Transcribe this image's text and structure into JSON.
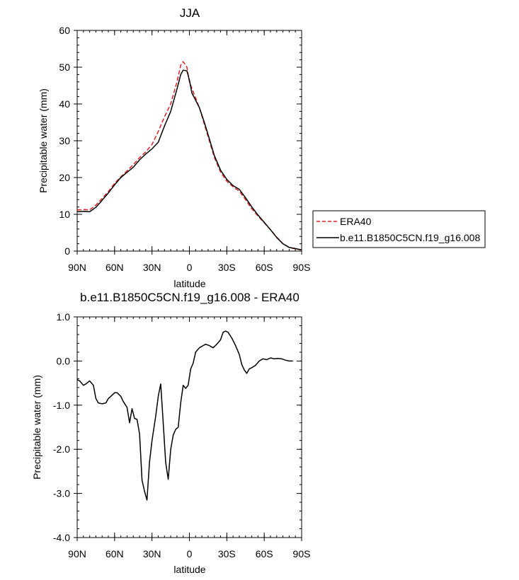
{
  "chart_data": [
    {
      "type": "line",
      "title": "JJA",
      "xlabel": "latitude",
      "ylabel": "Precipitable water (mm)",
      "xlim": [
        -90,
        90
      ],
      "ylim": [
        0,
        60
      ],
      "x_ticks": [
        {
          "value": -90,
          "label": "90N"
        },
        {
          "value": -60,
          "label": "60N"
        },
        {
          "value": -30,
          "label": "30N"
        },
        {
          "value": 0,
          "label": "0"
        },
        {
          "value": 30,
          "label": "30S"
        },
        {
          "value": 60,
          "label": "60S"
        },
        {
          "value": 90,
          "label": "90S"
        }
      ],
      "y_ticks": [
        {
          "value": 0,
          "label": "0"
        },
        {
          "value": 10,
          "label": "10"
        },
        {
          "value": 20,
          "label": "20"
        },
        {
          "value": 30,
          "label": "30"
        },
        {
          "value": 40,
          "label": "40"
        },
        {
          "value": 50,
          "label": "50"
        },
        {
          "value": 60,
          "label": "60"
        }
      ],
      "legend": {
        "position": "right"
      },
      "series": [
        {
          "name": "ERA40",
          "color": "#e02020",
          "dash": "dashed",
          "points": [
            [
              -90,
              11.2
            ],
            [
              -84,
              11.3
            ],
            [
              -80,
              11.2
            ],
            [
              -75,
              12.5
            ],
            [
              -70,
              14.3
            ],
            [
              -65,
              16.2
            ],
            [
              -60,
              18.4
            ],
            [
              -55,
              20.2
            ],
            [
              -50,
              21.8
            ],
            [
              -45,
              23.5
            ],
            [
              -40,
              25.4
            ],
            [
              -35,
              27.0
            ],
            [
              -30,
              29.0
            ],
            [
              -25,
              32.5
            ],
            [
              -20,
              36.5
            ],
            [
              -15,
              40.0
            ],
            [
              -10,
              46.0
            ],
            [
              -7,
              50.5
            ],
            [
              -5,
              51.5
            ],
            [
              -2,
              50.0
            ],
            [
              0,
              46.0
            ],
            [
              4,
              42.5
            ],
            [
              8,
              39.0
            ],
            [
              12,
              34.5
            ],
            [
              16,
              30.0
            ],
            [
              20,
              25.5
            ],
            [
              25,
              21.5
            ],
            [
              30,
              19.0
            ],
            [
              35,
              17.5
            ],
            [
              40,
              16.3
            ],
            [
              45,
              14.0
            ],
            [
              50,
              11.5
            ],
            [
              55,
              9.5
            ],
            [
              60,
              7.7
            ],
            [
              65,
              5.8
            ],
            [
              70,
              3.8
            ],
            [
              75,
              2.0
            ],
            [
              80,
              1.0
            ],
            [
              85,
              0.6
            ],
            [
              90,
              0.3
            ]
          ]
        },
        {
          "name": "b.e11.B1850C5CN.f19_g16.008",
          "color": "#000000",
          "dash": "solid",
          "points": [
            [
              -90,
              10.7
            ],
            [
              -84,
              10.8
            ],
            [
              -80,
              10.7
            ],
            [
              -75,
              11.9
            ],
            [
              -70,
              13.8
            ],
            [
              -65,
              15.8
            ],
            [
              -60,
              18.0
            ],
            [
              -55,
              20.0
            ],
            [
              -50,
              21.4
            ],
            [
              -45,
              22.8
            ],
            [
              -40,
              24.8
            ],
            [
              -35,
              26.4
            ],
            [
              -30,
              27.8
            ],
            [
              -25,
              29.6
            ],
            [
              -20,
              34.0
            ],
            [
              -15,
              38.0
            ],
            [
              -10,
              44.0
            ],
            [
              -7,
              48.0
            ],
            [
              -5,
              49.2
            ],
            [
              -2,
              49.0
            ],
            [
              0,
              46.5
            ],
            [
              2,
              43.0
            ],
            [
              5,
              41.0
            ],
            [
              8,
              39.0
            ],
            [
              12,
              35.0
            ],
            [
              16,
              30.5
            ],
            [
              20,
              26.0
            ],
            [
              25,
              22.0
            ],
            [
              30,
              19.5
            ],
            [
              35,
              17.8
            ],
            [
              40,
              16.8
            ],
            [
              45,
              14.5
            ],
            [
              50,
              12.0
            ],
            [
              55,
              9.8
            ],
            [
              60,
              7.8
            ],
            [
              65,
              5.8
            ],
            [
              70,
              3.7
            ],
            [
              75,
              2.0
            ],
            [
              80,
              1.0
            ],
            [
              85,
              0.7
            ],
            [
              90,
              0.3
            ]
          ]
        }
      ]
    },
    {
      "type": "line",
      "title": "b.e11.B1850C5CN.f19_g16.008 - ERA40",
      "xlabel": "latitude",
      "ylabel": "Precipitable water (mm)",
      "xlim": [
        -90,
        90
      ],
      "ylim": [
        -4,
        1
      ],
      "x_ticks": [
        {
          "value": -90,
          "label": "90N"
        },
        {
          "value": -60,
          "label": "60N"
        },
        {
          "value": -30,
          "label": "30N"
        },
        {
          "value": 0,
          "label": "0"
        },
        {
          "value": 30,
          "label": "30S"
        },
        {
          "value": 60,
          "label": "60S"
        },
        {
          "value": 90,
          "label": "90S"
        }
      ],
      "y_ticks": [
        {
          "value": 1,
          "label": "1.0"
        },
        {
          "value": 0,
          "label": "0.0"
        },
        {
          "value": -1,
          "label": "-1.0"
        },
        {
          "value": -2,
          "label": "-2.0"
        },
        {
          "value": -3,
          "label": "-3.0"
        },
        {
          "value": -4,
          "label": "-4.0"
        }
      ],
      "series": [
        {
          "color": "#000000",
          "dash": "solid",
          "points": [
            [
              -90,
              -0.42
            ],
            [
              -88,
              -0.45
            ],
            [
              -85,
              -0.55
            ],
            [
              -83,
              -0.52
            ],
            [
              -80,
              -0.45
            ],
            [
              -77,
              -0.55
            ],
            [
              -75,
              -0.85
            ],
            [
              -73,
              -0.95
            ],
            [
              -70,
              -0.97
            ],
            [
              -67,
              -0.95
            ],
            [
              -65,
              -0.85
            ],
            [
              -63,
              -0.8
            ],
            [
              -60,
              -0.72
            ],
            [
              -58,
              -0.72
            ],
            [
              -55,
              -0.8
            ],
            [
              -53,
              -0.92
            ],
            [
              -50,
              -1.05
            ],
            [
              -48,
              -1.4
            ],
            [
              -46,
              -1.08
            ],
            [
              -44,
              -1.3
            ],
            [
              -42,
              -1.32
            ],
            [
              -40,
              -1.65
            ],
            [
              -38,
              -2.7
            ],
            [
              -36,
              -2.95
            ],
            [
              -34,
              -3.15
            ],
            [
              -32,
              -2.3
            ],
            [
              -30,
              -1.8
            ],
            [
              -27,
              -1.25
            ],
            [
              -25,
              -0.8
            ],
            [
              -23,
              -0.52
            ],
            [
              -21,
              -1.4
            ],
            [
              -19,
              -2.3
            ],
            [
              -17,
              -2.68
            ],
            [
              -15,
              -2.0
            ],
            [
              -13,
              -1.68
            ],
            [
              -11,
              -1.55
            ],
            [
              -9,
              -1.5
            ],
            [
              -7,
              -0.95
            ],
            [
              -5,
              -0.55
            ],
            [
              -3,
              -0.62
            ],
            [
              -1,
              -0.55
            ],
            [
              1,
              -0.18
            ],
            [
              3,
              -0.05
            ],
            [
              5,
              0.2
            ],
            [
              8,
              0.3
            ],
            [
              11,
              0.35
            ],
            [
              13,
              0.38
            ],
            [
              16,
              0.35
            ],
            [
              19,
              0.3
            ],
            [
              22,
              0.38
            ],
            [
              25,
              0.48
            ],
            [
              27,
              0.65
            ],
            [
              29,
              0.68
            ],
            [
              31,
              0.65
            ],
            [
              34,
              0.52
            ],
            [
              37,
              0.35
            ],
            [
              40,
              0.15
            ],
            [
              42,
              -0.08
            ],
            [
              44,
              -0.2
            ],
            [
              46,
              -0.28
            ],
            [
              48,
              -0.18
            ],
            [
              50,
              -0.15
            ],
            [
              53,
              -0.1
            ],
            [
              56,
              0.0
            ],
            [
              59,
              0.05
            ],
            [
              62,
              0.03
            ],
            [
              65,
              0.07
            ],
            [
              68,
              0.05
            ],
            [
              71,
              0.06
            ],
            [
              74,
              0.05
            ],
            [
              77,
              0.02
            ],
            [
              80,
              0.0
            ],
            [
              83,
              0.0
            ]
          ]
        }
      ]
    }
  ]
}
